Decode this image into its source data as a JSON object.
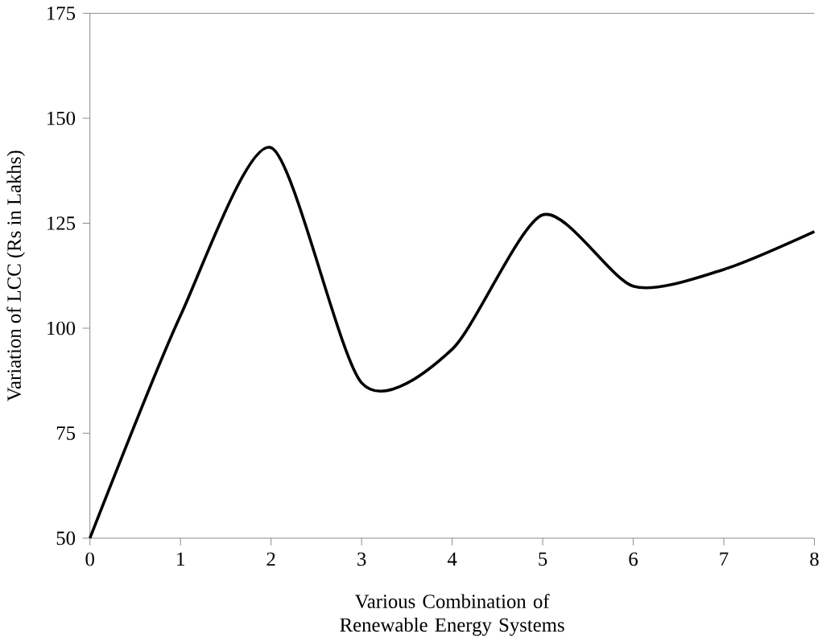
{
  "chart_data": {
    "type": "line",
    "xlabel": "Various Combination of Renewable Energy Systems",
    "ylabel": "Variation of LCC (Rs in Lakhs)",
    "x": [
      0,
      1,
      2,
      3,
      4,
      5,
      6,
      7,
      8
    ],
    "series": [
      {
        "color": "#000000",
        "values": [
          50,
          103,
          143,
          87,
          95,
          127,
          110,
          114,
          123
        ]
      }
    ],
    "xlim": [
      0,
      8
    ],
    "ylim": [
      50,
      175
    ],
    "xticks": [
      0,
      1,
      2,
      3,
      4,
      5,
      6,
      7,
      8
    ],
    "yticks": [
      50,
      75,
      100,
      125,
      150,
      175
    ],
    "grid": false,
    "marker": "none",
    "line_style": "solid"
  }
}
